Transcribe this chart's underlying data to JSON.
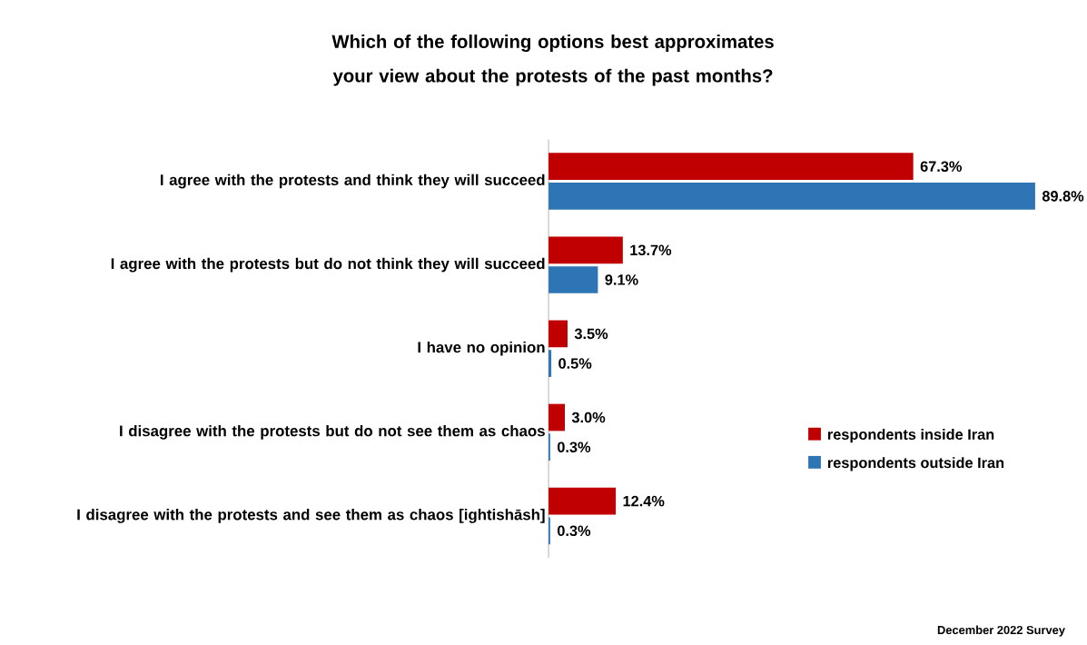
{
  "chart_data": {
    "type": "bar",
    "orientation": "horizontal",
    "title": "Which of the following options best approximates your view about the protests of the past months?",
    "categories": [
      "I agree with the protests and think they will succeed",
      "I agree with the protests but do not think they will succeed",
      "I have no opinion",
      "I disagree with the protests but do not see them as chaos",
      "I disagree with the protests and see them as chaos [ightishāsh]"
    ],
    "series": [
      {
        "name": "respondents inside Iran",
        "color": "#c00000",
        "values": [
          67.3,
          13.7,
          3.5,
          3.0,
          12.4
        ],
        "value_labels": [
          "67.3%",
          "13.7%",
          "3.5%",
          "3.0%",
          "12.4%"
        ]
      },
      {
        "name": "respondents outside Iran",
        "color": "#2e75b6",
        "values": [
          89.8,
          9.1,
          0.5,
          0.3,
          0.3
        ],
        "value_labels": [
          "89.8%",
          "9.1%",
          "0.5%",
          "0.3%",
          "0.3%"
        ]
      }
    ],
    "legend": "right",
    "annotations": [
      "December 2022 Survey"
    ]
  }
}
